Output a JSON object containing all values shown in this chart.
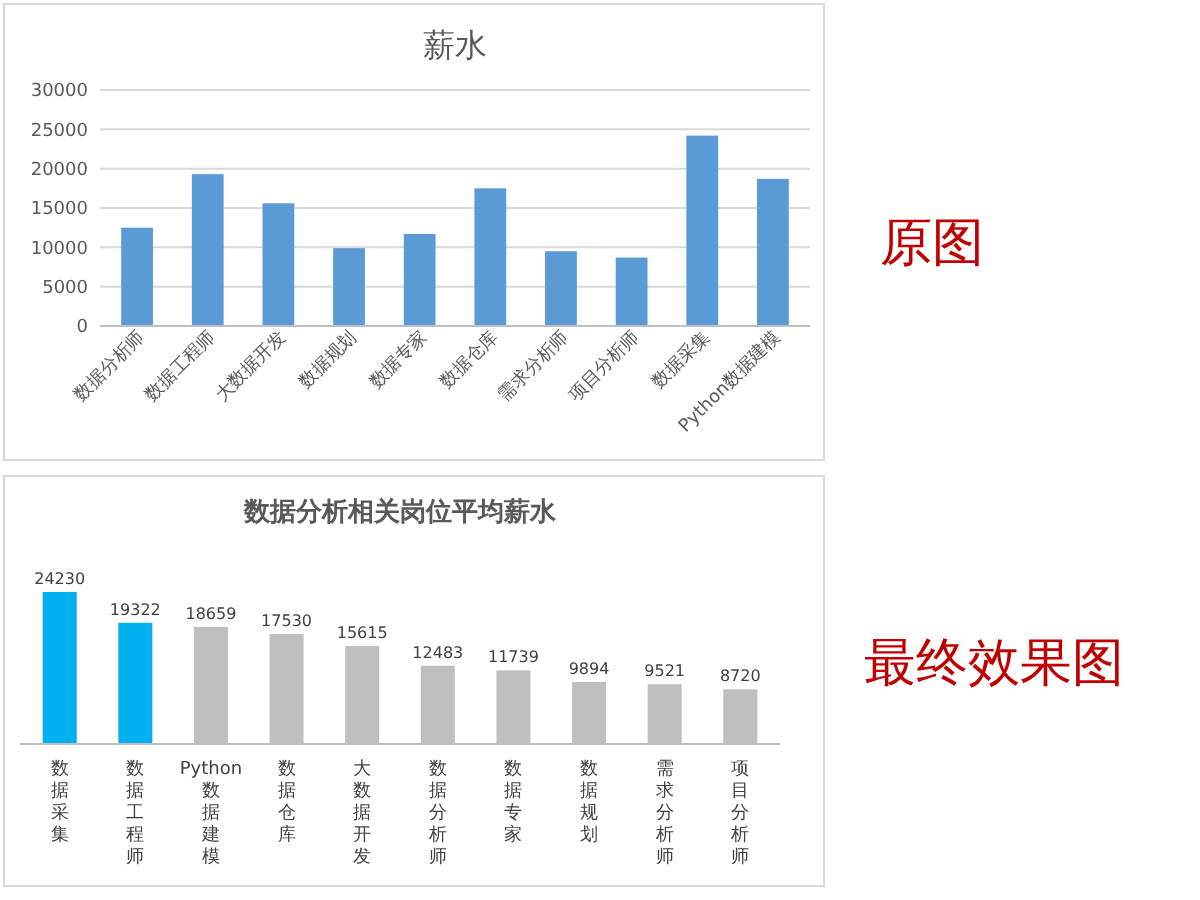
{
  "chart_data": [
    {
      "type": "bar",
      "title": "薪水",
      "categories": [
        "数据分析师",
        "数据工程师",
        "大数据开发",
        "数据规划",
        "数据专家",
        "数据仓库",
        "需求分析师",
        "项目分析师",
        "数据采集",
        "Python数据建模"
      ],
      "values": [
        12500,
        19300,
        15600,
        9900,
        11700,
        17500,
        9500,
        8700,
        24200,
        18700
      ],
      "color": "#5b9bd5",
      "ylim": [
        0,
        30000
      ],
      "yticks": [
        0,
        5000,
        10000,
        15000,
        20000,
        25000,
        30000
      ],
      "grid": "y",
      "annotations": [
        "原图"
      ]
    },
    {
      "type": "bar",
      "title": "数据分析相关岗位平均薪水",
      "categories": [
        "数据采集",
        "数据工程师",
        "Python数据建模",
        "数据仓库",
        "大数据开发",
        "数据分析师",
        "数据专家",
        "数据规划",
        "需求分析师",
        "项目分析师"
      ],
      "values": [
        24230,
        19322,
        18659,
        17530,
        15615,
        12483,
        11739,
        9894,
        9521,
        8720
      ],
      "colors": [
        "#00b0f0",
        "#00b0f0",
        "#bfbfbf",
        "#bfbfbf",
        "#bfbfbf",
        "#bfbfbf",
        "#bfbfbf",
        "#bfbfbf",
        "#bfbfbf",
        "#bfbfbf"
      ],
      "data_labels": true,
      "annotations": [
        "最终效果图"
      ]
    }
  ]
}
